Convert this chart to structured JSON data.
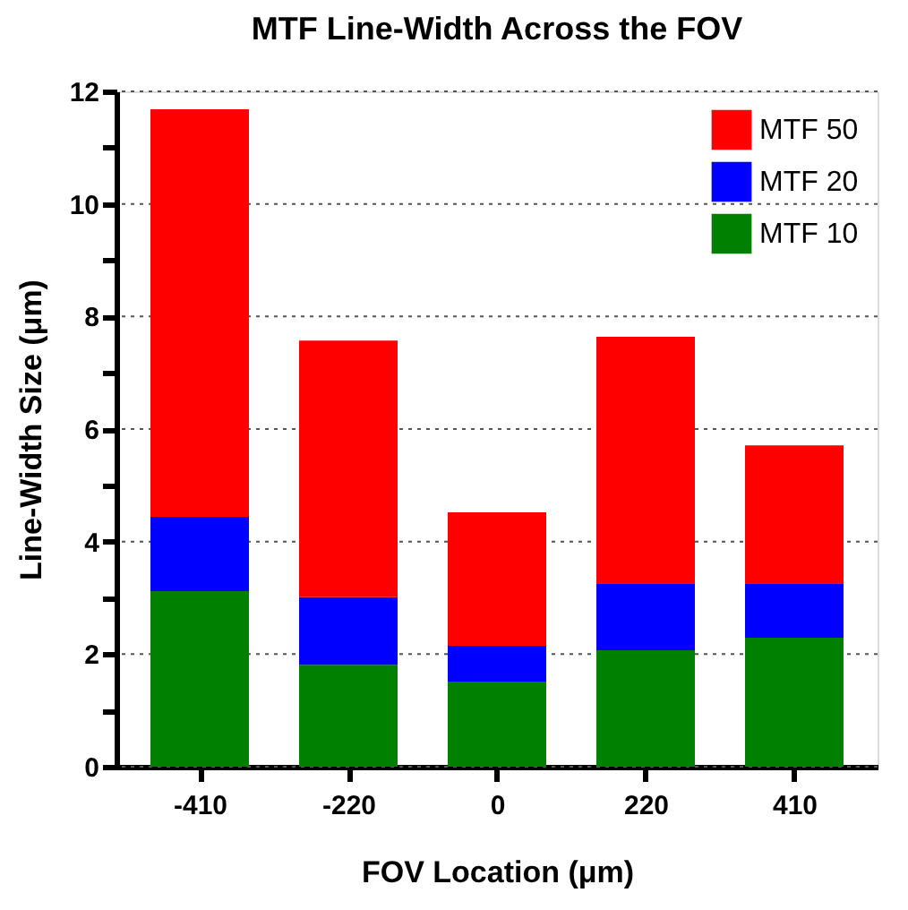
{
  "chart_data": {
    "type": "bar",
    "title": "MTF Line-Width Across the FOV",
    "xlabel": "FOV Location (μm)",
    "ylabel": "Line-Width Size (μm)",
    "categories": [
      "-410",
      "-220",
      "0",
      "220",
      "410"
    ],
    "stacked": true,
    "series": [
      {
        "name": "MTF 10",
        "color": "#008000",
        "values": [
          3.12,
          1.81,
          1.51,
          2.07,
          2.29
        ]
      },
      {
        "name": "MTF 20",
        "color": "#0000ff",
        "values": [
          1.32,
          1.2,
          0.64,
          1.19,
          0.97
        ]
      },
      {
        "name": "MTF 50",
        "color": "#ff0000",
        "values": [
          7.24,
          4.56,
          2.37,
          4.38,
          2.45
        ]
      }
    ],
    "ylim": [
      0,
      12
    ],
    "yticks": [
      0,
      {
        "value": 1,
        "label": null
      },
      2,
      {
        "value": 3,
        "label": null
      },
      4,
      {
        "value": 5,
        "label": null
      },
      6,
      {
        "value": 7,
        "label": null
      },
      8,
      {
        "value": 9,
        "label": null
      },
      10,
      {
        "value": 11,
        "label": null
      },
      12
    ],
    "grid": "y",
    "legend": "top right"
  }
}
